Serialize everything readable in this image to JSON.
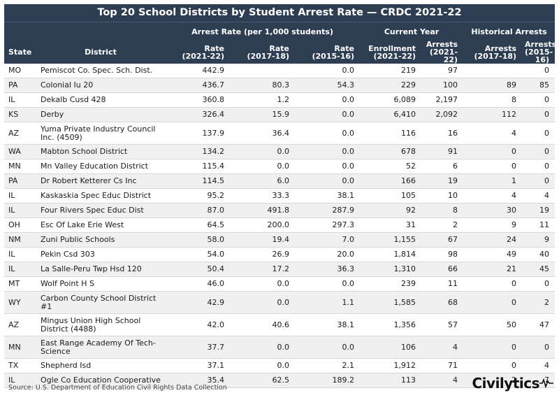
{
  "chart_data": {
    "type": "table",
    "title": "Top 20 School Districts by Student Arrest Rate — CRDC 2021-22",
    "column_groups": [
      "Arrest Rate (per 1,000 students)",
      "Current Year",
      "Historical Arrests"
    ],
    "columns": [
      {
        "l1": "State",
        "l2": ""
      },
      {
        "l1": "District",
        "l2": ""
      },
      {
        "l1": "Rate",
        "l2": "(2021-22)"
      },
      {
        "l1": "Rate",
        "l2": "(2017-18)"
      },
      {
        "l1": "Rate",
        "l2": "(2015-16)"
      },
      {
        "l1": "Enrollment",
        "l2": "(2021-22)"
      },
      {
        "l1": "Arrests",
        "l2": "(2021-22)"
      },
      {
        "l1": "Arrests",
        "l2": "(2017-18)"
      },
      {
        "l1": "Arrests",
        "l2": "(2015-16)"
      }
    ],
    "rows": [
      [
        "MO",
        "Pemiscot Co. Spec. Sch. Dist.",
        "442.9",
        "",
        "0.0",
        "219",
        "97",
        "",
        "0"
      ],
      [
        "PA",
        "Colonial Iu 20",
        "436.7",
        "80.3",
        "54.3",
        "229",
        "100",
        "89",
        "85"
      ],
      [
        "IL",
        "Dekalb Cusd 428",
        "360.8",
        "1.2",
        "0.0",
        "6,089",
        "2,197",
        "8",
        "0"
      ],
      [
        "KS",
        "Derby",
        "326.4",
        "15.9",
        "0.0",
        "6,410",
        "2,092",
        "112",
        "0"
      ],
      [
        "AZ",
        "Yuma Private Industry Council Inc. (4509)",
        "137.9",
        "36.4",
        "0.0",
        "116",
        "16",
        "4",
        "0"
      ],
      [
        "WA",
        "Mabton School District",
        "134.2",
        "0.0",
        "0.0",
        "678",
        "91",
        "0",
        "0"
      ],
      [
        "MN",
        "Mn Valley Education District",
        "115.4",
        "0.0",
        "0.0",
        "52",
        "6",
        "0",
        "0"
      ],
      [
        "PA",
        "Dr Robert Ketterer Cs Inc",
        "114.5",
        "6.0",
        "0.0",
        "166",
        "19",
        "1",
        "0"
      ],
      [
        "IL",
        "Kaskaskia Spec Educ District",
        "95.2",
        "33.3",
        "38.1",
        "105",
        "10",
        "4",
        "4"
      ],
      [
        "IL",
        "Four Rivers Spec Educ Dist",
        "87.0",
        "491.8",
        "287.9",
        "92",
        "8",
        "30",
        "19"
      ],
      [
        "OH",
        "Esc Of Lake Erie West",
        "64.5",
        "200.0",
        "297.3",
        "31",
        "2",
        "9",
        "11"
      ],
      [
        "NM",
        "Zuni Public Schools",
        "58.0",
        "19.4",
        "7.0",
        "1,155",
        "67",
        "24",
        "9"
      ],
      [
        "IL",
        "Pekin Csd 303",
        "54.0",
        "26.9",
        "20.0",
        "1,814",
        "98",
        "49",
        "40"
      ],
      [
        "IL",
        "La Salle-Peru Twp Hsd 120",
        "50.4",
        "17.2",
        "36.3",
        "1,310",
        "66",
        "21",
        "45"
      ],
      [
        "MT",
        "Wolf Point H S",
        "46.0",
        "0.0",
        "0.0",
        "239",
        "11",
        "0",
        "0"
      ],
      [
        "WY",
        "Carbon County School District #1",
        "42.9",
        "0.0",
        "1.1",
        "1,585",
        "68",
        "0",
        "2"
      ],
      [
        "AZ",
        "Mingus Union High School District (4488)",
        "42.0",
        "40.6",
        "38.1",
        "1,356",
        "57",
        "50",
        "47"
      ],
      [
        "MN",
        "East Range Academy Of Tech-Science",
        "37.7",
        "0.0",
        "0.0",
        "106",
        "4",
        "0",
        "0"
      ],
      [
        "TX",
        "Shepherd Isd",
        "37.1",
        "0.0",
        "2.1",
        "1,912",
        "71",
        "0",
        "4"
      ],
      [
        "IL",
        "Ogle Co Education Cooperative",
        "35.4",
        "62.5",
        "189.2",
        "113",
        "4",
        "2",
        "7"
      ]
    ]
  },
  "footer": {
    "source": "Source: U.S. Department of Education Civil Rights Data Collection",
    "logo": "Civilytics",
    "logo_icon": "pulse-wave-icon"
  },
  "colors": {
    "header_bg": "#2d3d52",
    "stripe": "#f0f0f0"
  }
}
